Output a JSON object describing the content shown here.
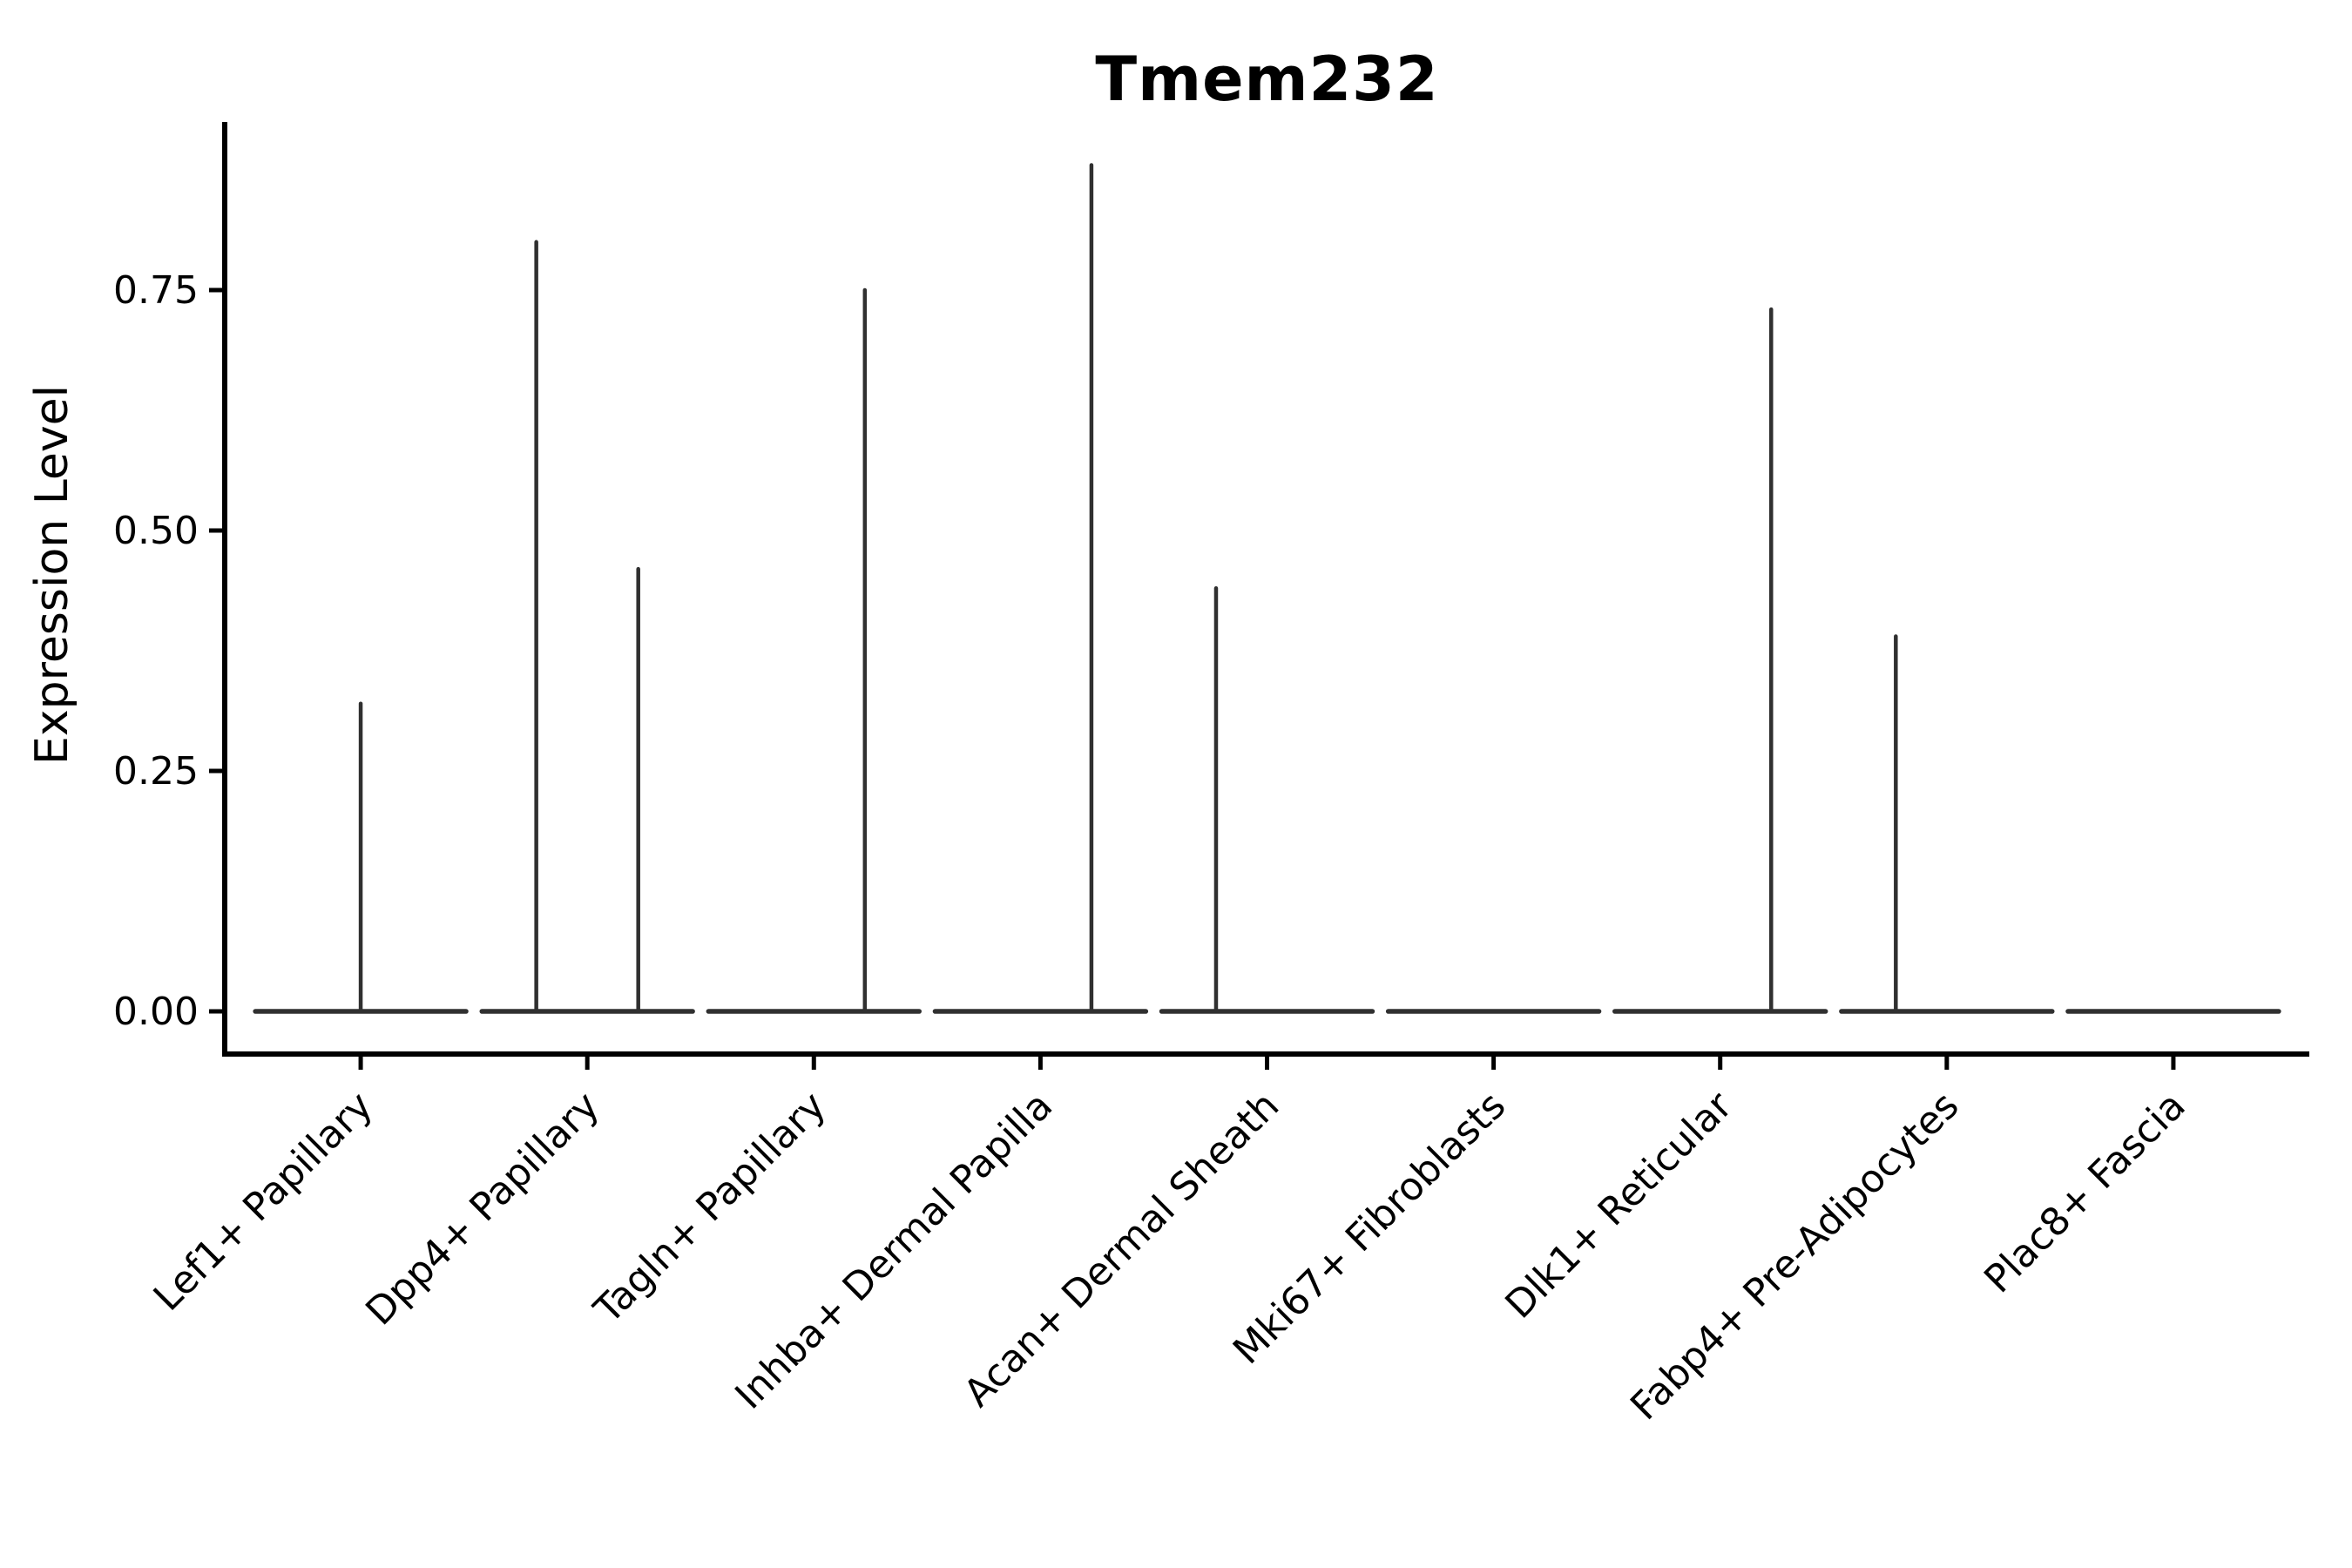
{
  "chart_data": {
    "type": "violin",
    "title": "Tmem232",
    "xlabel": "",
    "ylabel": "Expression Level",
    "grid": false,
    "legend": false,
    "ylim": [
      0,
      0.925
    ],
    "ytick_labels": [
      "0.00",
      "0.25",
      "0.50",
      "0.75"
    ],
    "ytick_values": [
      0,
      0.25,
      0.5,
      0.75
    ],
    "categories": [
      "Lef1+ Papillary",
      "Dpp4+ Papillary",
      "Tagln+ Papillary",
      "Inhba+ Dermal Papilla",
      "Acan+ Dermal Sheath",
      "Mki67+ Fibroblasts",
      "Dlk1+ Reticular",
      "Fabp4+ Pre-Adipocytes",
      "Plac8+ Fascia"
    ],
    "series": [
      {
        "category": "Lef1+ Papillary",
        "base_value": 0,
        "peaks": [
          {
            "pos": "center",
            "value": 0.32
          }
        ]
      },
      {
        "category": "Dpp4+ Papillary",
        "base_value": 0,
        "peaks": [
          {
            "pos": "left",
            "value": 0.8
          },
          {
            "pos": "right",
            "value": 0.46
          }
        ]
      },
      {
        "category": "Tagln+ Papillary",
        "base_value": 0,
        "peaks": [
          {
            "pos": "right",
            "value": 0.75
          }
        ]
      },
      {
        "category": "Inhba+ Dermal Papilla",
        "base_value": 0,
        "peaks": [
          {
            "pos": "right",
            "value": 0.88
          }
        ]
      },
      {
        "category": "Acan+ Dermal Sheath",
        "base_value": 0,
        "peaks": [
          {
            "pos": "left",
            "value": 0.44
          }
        ]
      },
      {
        "category": "Mki67+ Fibroblasts",
        "base_value": 0,
        "peaks": []
      },
      {
        "category": "Dlk1+ Reticular",
        "base_value": 0,
        "peaks": [
          {
            "pos": "right",
            "value": 0.73
          }
        ]
      },
      {
        "category": "Fabp4+ Pre-Adipocytes",
        "base_value": 0,
        "peaks": [
          {
            "pos": "left",
            "value": 0.39
          }
        ]
      },
      {
        "category": "Plac8+ Fascia",
        "base_value": 0,
        "peaks": []
      }
    ],
    "colors": {
      "violin_stroke": "#303030",
      "axis": "#000000",
      "text": "#000000",
      "background": "#ffffff"
    }
  }
}
